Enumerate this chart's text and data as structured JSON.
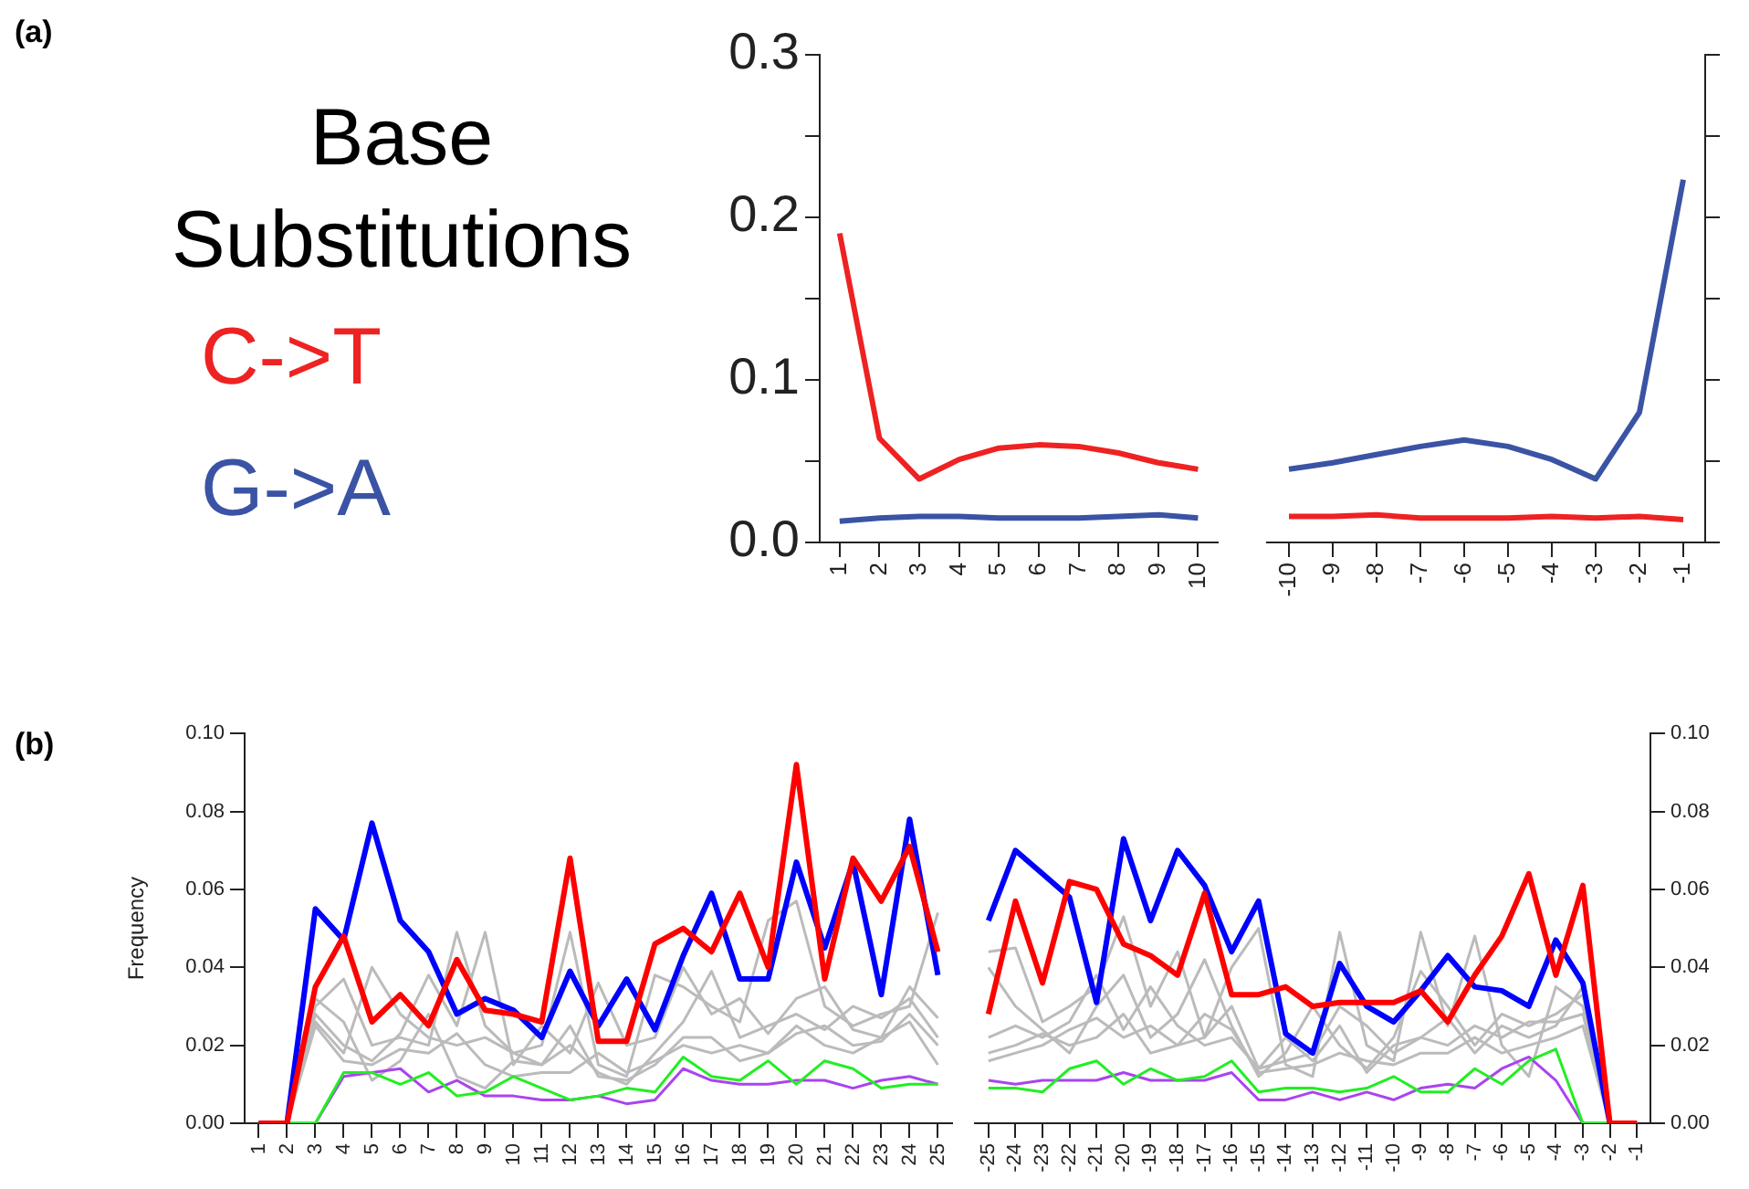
{
  "chart_data": [
    {
      "type": "line",
      "title": "Base Substitutions",
      "annotations": [
        "(a)"
      ],
      "legend": "left",
      "categories": [
        "1",
        "2",
        "3",
        "4",
        "5",
        "6",
        "7",
        "8",
        "9",
        "10"
      ],
      "ylim": [
        0,
        0.3
      ],
      "yticks": [
        {
          "value": 0,
          "label": "0.0"
        },
        {
          "value": 0.05,
          "label": null
        },
        {
          "value": 0.1,
          "label": "0.1"
        },
        {
          "value": 0.15,
          "label": null
        },
        {
          "value": 0.2,
          "label": "0.2"
        },
        {
          "value": 0.25,
          "label": null
        },
        {
          "value": 0.3,
          "label": "0.3"
        }
      ],
      "grid": false,
      "marker": "none",
      "series": [
        {
          "name": "C->T",
          "color": "#ee2222",
          "values": [
            0.19,
            0.064,
            0.039,
            0.051,
            0.058,
            0.06,
            0.059,
            0.055,
            0.049,
            0.045
          ]
        },
        {
          "name": "G->A",
          "color": "#3a53a4",
          "values": [
            0.013,
            0.015,
            0.016,
            0.016,
            0.015,
            0.015,
            0.015,
            0.016,
            0.017,
            0.015
          ]
        }
      ]
    },
    {
      "type": "line",
      "categories": [
        "-10",
        "-9",
        "-8",
        "-7",
        "-6",
        "-5",
        "-4",
        "-3",
        "-2",
        "-1"
      ],
      "ylim": [
        0,
        0.3
      ],
      "yticks": [
        {
          "value": 0,
          "label": null
        },
        {
          "value": 0.05,
          "label": null
        },
        {
          "value": 0.1,
          "label": null
        },
        {
          "value": 0.15,
          "label": null
        },
        {
          "value": 0.2,
          "label": null
        },
        {
          "value": 0.25,
          "label": null
        },
        {
          "value": 0.3,
          "label": null
        }
      ],
      "tick_labels": "x",
      "grid": false,
      "marker": "none",
      "series": [
        {
          "color": "#ee2222",
          "values": [
            0.016,
            0.016,
            0.017,
            0.015,
            0.015,
            0.015,
            0.016,
            0.015,
            0.016,
            0.014
          ]
        },
        {
          "color": "#3a53a4",
          "values": [
            0.045,
            0.049,
            0.054,
            0.059,
            0.063,
            0.059,
            0.051,
            0.039,
            0.08,
            0.223
          ]
        }
      ]
    },
    {
      "type": "line",
      "annotations": [
        "(b)"
      ],
      "ylabel": "Frequency",
      "categories": [
        "1",
        "2",
        "3",
        "4",
        "5",
        "6",
        "7",
        "8",
        "9",
        "10",
        "11",
        "12",
        "13",
        "14",
        "15",
        "16",
        "17",
        "18",
        "19",
        "20",
        "21",
        "22",
        "23",
        "24",
        "25"
      ],
      "ylim": [
        0,
        0.1
      ],
      "yticks": [
        {
          "value": 0,
          "label": "0.00"
        },
        {
          "value": 0.02,
          "label": "0.02"
        },
        {
          "value": 0.04,
          "label": "0.04"
        },
        {
          "value": 0.06,
          "label": "0.06"
        },
        {
          "value": 0.08,
          "label": "0.08"
        },
        {
          "value": 0.1,
          "label": "0.10"
        }
      ],
      "grid": false,
      "marker": "none",
      "series": [
        {
          "color": "#ff0000",
          "values": [
            0,
            0,
            0.035,
            0.048,
            0.026,
            0.033,
            0.025,
            0.042,
            0.029,
            0.028,
            0.026,
            0.068,
            0.021,
            0.021,
            0.046,
            0.05,
            0.044,
            0.059,
            0.04,
            0.092,
            0.037,
            0.068,
            0.057,
            0.071,
            0.044
          ]
        },
        {
          "color": "#0000ff",
          "values": [
            0,
            0,
            0.055,
            0.047,
            0.077,
            0.052,
            0.044,
            0.028,
            0.032,
            0.029,
            0.022,
            0.039,
            0.025,
            0.037,
            0.024,
            0.043,
            0.059,
            0.037,
            0.037,
            0.067,
            0.045,
            0.067,
            0.033,
            0.078,
            0.038
          ]
        },
        {
          "color": "#22ee22",
          "values": [
            0,
            0,
            0,
            0.013,
            0.013,
            0.01,
            0.013,
            0.007,
            0.008,
            0.012,
            0.009,
            0.006,
            0.007,
            0.009,
            0.008,
            0.017,
            0.012,
            0.011,
            0.016,
            0.01,
            0.016,
            0.014,
            0.009,
            0.01,
            0.01
          ]
        },
        {
          "color": "#aa44ee",
          "values": [
            0,
            0,
            0,
            0.012,
            0.013,
            0.014,
            0.008,
            0.011,
            0.007,
            0.007,
            0.006,
            0.006,
            0.007,
            0.005,
            0.006,
            0.014,
            0.011,
            0.01,
            0.01,
            0.011,
            0.011,
            0.009,
            0.011,
            0.012,
            0.01
          ]
        },
        {
          "color": "#bbbbbb",
          "values": [
            0,
            0,
            0.03,
            0.037,
            0.02,
            0.022,
            0.02,
            0.049,
            0.025,
            0.018,
            0.02,
            0.049,
            0.015,
            0.012,
            0.038,
            0.035,
            0.03,
            0.026,
            0.052,
            0.057,
            0.03,
            0.025,
            0.028,
            0.03,
            0.054
          ]
        },
        {
          "color": "#bbbbbb",
          "values": [
            0,
            0,
            0.028,
            0.02,
            0.016,
            0.023,
            0.038,
            0.025,
            0.049,
            0.015,
            0.025,
            0.018,
            0.036,
            0.02,
            0.022,
            0.04,
            0.028,
            0.032,
            0.023,
            0.032,
            0.035,
            0.024,
            0.022,
            0.035,
            0.027
          ]
        },
        {
          "color": "#bbbbbb",
          "values": [
            0,
            0,
            0.026,
            0.018,
            0.04,
            0.028,
            0.022,
            0.02,
            0.022,
            0.018,
            0.015,
            0.02,
            0.013,
            0.01,
            0.018,
            0.026,
            0.039,
            0.022,
            0.025,
            0.028,
            0.024,
            0.03,
            0.027,
            0.032,
            0.022
          ]
        },
        {
          "color": "#bbbbbb",
          "values": [
            0,
            0,
            0.025,
            0.016,
            0.015,
            0.019,
            0.018,
            0.023,
            0.015,
            0.012,
            0.013,
            0.013,
            0.018,
            0.013,
            0.016,
            0.02,
            0.018,
            0.02,
            0.018,
            0.025,
            0.02,
            0.018,
            0.022,
            0.026,
            0.015
          ]
        },
        {
          "color": "#bbbbbb",
          "values": [
            0,
            0,
            0.032,
            0.026,
            0.011,
            0.016,
            0.028,
            0.012,
            0.009,
            0.016,
            0.015,
            0.025,
            0.012,
            0.011,
            0.015,
            0.022,
            0.022,
            0.016,
            0.018,
            0.023,
            0.025,
            0.02,
            0.021,
            0.028,
            0.02
          ]
        }
      ]
    },
    {
      "type": "line",
      "categories": [
        "-25",
        "-24",
        "-23",
        "-22",
        "-21",
        "-20",
        "-19",
        "-18",
        "-17",
        "-16",
        "-15",
        "-14",
        "-13",
        "-12",
        "-11",
        "-10",
        "-9",
        "-8",
        "-7",
        "-6",
        "-5",
        "-4",
        "-3",
        "-2",
        "-1"
      ],
      "ylim": [
        0,
        0.1
      ],
      "yticks": [
        {
          "value": 0,
          "label": "0.00"
        },
        {
          "value": 0.02,
          "label": "0.02"
        },
        {
          "value": 0.04,
          "label": "0.04"
        },
        {
          "value": 0.06,
          "label": "0.06"
        },
        {
          "value": 0.08,
          "label": "0.08"
        },
        {
          "value": 0.1,
          "label": "0.10"
        }
      ],
      "grid": false,
      "marker": "none",
      "series": [
        {
          "color": "#ff0000",
          "values": [
            0.028,
            0.057,
            0.036,
            0.062,
            0.06,
            0.046,
            0.043,
            0.038,
            0.059,
            0.033,
            0.033,
            0.035,
            0.03,
            0.031,
            0.031,
            0.031,
            0.034,
            0.026,
            0.038,
            0.048,
            0.064,
            0.038,
            0.061,
            0,
            0
          ]
        },
        {
          "color": "#0000ff",
          "values": [
            0.052,
            0.07,
            0.064,
            0.058,
            0.031,
            0.073,
            0.052,
            0.07,
            0.061,
            0.044,
            0.057,
            0.023,
            0.018,
            0.041,
            0.03,
            0.026,
            0.034,
            0.043,
            0.035,
            0.034,
            0.03,
            0.047,
            0.036,
            0,
            0
          ]
        },
        {
          "color": "#22ee22",
          "values": [
            0.009,
            0.009,
            0.008,
            0.014,
            0.016,
            0.01,
            0.014,
            0.011,
            0.012,
            0.016,
            0.008,
            0.009,
            0.009,
            0.008,
            0.009,
            0.012,
            0.008,
            0.008,
            0.014,
            0.01,
            0.016,
            0.019,
            0,
            0,
            0
          ]
        },
        {
          "color": "#aa44ee",
          "values": [
            0.011,
            0.01,
            0.011,
            0.011,
            0.011,
            0.013,
            0.011,
            0.011,
            0.011,
            0.013,
            0.006,
            0.006,
            0.008,
            0.006,
            0.008,
            0.006,
            0.009,
            0.01,
            0.009,
            0.014,
            0.017,
            0.011,
            0,
            0,
            0
          ]
        },
        {
          "color": "#bbbbbb",
          "values": [
            0.044,
            0.045,
            0.026,
            0.03,
            0.035,
            0.053,
            0.03,
            0.044,
            0.022,
            0.04,
            0.05,
            0.015,
            0.012,
            0.049,
            0.02,
            0.016,
            0.049,
            0.025,
            0.048,
            0.02,
            0.012,
            0.035,
            0.03,
            0,
            0
          ]
        },
        {
          "color": "#bbbbbb",
          "values": [
            0.04,
            0.03,
            0.024,
            0.018,
            0.03,
            0.038,
            0.022,
            0.028,
            0.042,
            0.025,
            0.012,
            0.018,
            0.03,
            0.02,
            0.014,
            0.022,
            0.039,
            0.03,
            0.02,
            0.028,
            0.025,
            0.028,
            0.033,
            0,
            0
          ]
        },
        {
          "color": "#bbbbbb",
          "values": [
            0.022,
            0.025,
            0.022,
            0.026,
            0.038,
            0.024,
            0.035,
            0.025,
            0.02,
            0.022,
            0.014,
            0.016,
            0.018,
            0.03,
            0.025,
            0.018,
            0.022,
            0.02,
            0.025,
            0.022,
            0.026,
            0.026,
            0.028,
            0,
            0
          ]
        },
        {
          "color": "#bbbbbb",
          "values": [
            0.018,
            0.02,
            0.023,
            0.02,
            0.022,
            0.028,
            0.018,
            0.02,
            0.028,
            0.024,
            0.013,
            0.014,
            0.015,
            0.018,
            0.016,
            0.015,
            0.018,
            0.018,
            0.022,
            0.018,
            0.02,
            0.022,
            0.025,
            0,
            0
          ]
        },
        {
          "color": "#bbbbbb",
          "values": [
            0.016,
            0.018,
            0.02,
            0.024,
            0.027,
            0.022,
            0.025,
            0.02,
            0.022,
            0.03,
            0.014,
            0.022,
            0.016,
            0.025,
            0.013,
            0.02,
            0.022,
            0.027,
            0.018,
            0.025,
            0.022,
            0.025,
            0.035,
            0,
            0
          ]
        }
      ]
    }
  ]
}
